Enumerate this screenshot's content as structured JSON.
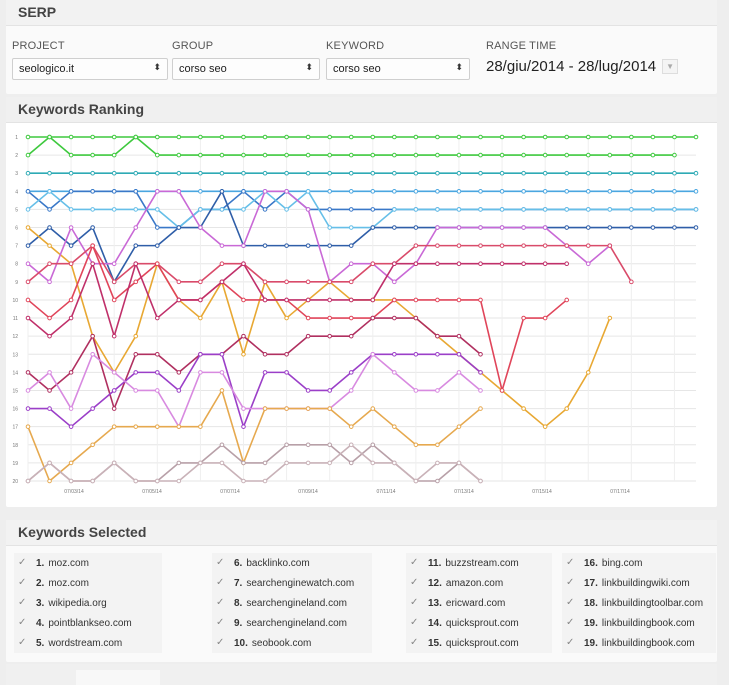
{
  "serp": {
    "title": "SERP",
    "project": {
      "label": "PROJECT",
      "value": "seologico.it"
    },
    "group": {
      "label": "GROUP",
      "value": "corso seo"
    },
    "keyword": {
      "label": "KEYWORD",
      "value": "corso seo"
    },
    "range": {
      "label": "RANGE TIME",
      "value": "28/giu/2014 - 28/lug/2014"
    }
  },
  "ranking": {
    "title": "Keywords Ranking"
  },
  "chart_data": {
    "type": "line",
    "y_ticks": [
      "1",
      "2",
      "3",
      "4",
      "5",
      "6",
      "7",
      "8",
      "9",
      "10",
      "11",
      "12",
      "13",
      "14",
      "15",
      "16",
      "17",
      "18",
      "19",
      "20"
    ],
    "x_ticks": [
      "07/03/14",
      "07/05/14",
      "07/07/14",
      "07/09/14",
      "07/11/14",
      "07/13/14",
      "07/15/14",
      "07/17/14"
    ],
    "ylim": [
      1,
      20
    ],
    "series": [
      {
        "color": "#3ec93e",
        "values": [
          1,
          1,
          1,
          1,
          1,
          1,
          1,
          1,
          1,
          1,
          1,
          1,
          1,
          1,
          1,
          1,
          1,
          1,
          1,
          1,
          1,
          1,
          1,
          1,
          1,
          1,
          1,
          1,
          1,
          1,
          1,
          1
        ]
      },
      {
        "color": "#3ec93e",
        "values": [
          2,
          1,
          2,
          2,
          2,
          1,
          2,
          2,
          2,
          2,
          2,
          2,
          2,
          2,
          2,
          2,
          2,
          2,
          2,
          2,
          2,
          2,
          2,
          2,
          2,
          2,
          2,
          2,
          2,
          2,
          2
        ]
      },
      {
        "color": "#2eaab5",
        "values": [
          3,
          3,
          3,
          3,
          3,
          3,
          3,
          3,
          3,
          3,
          3,
          3,
          3,
          3,
          3,
          3,
          3,
          3,
          3,
          3,
          3,
          3,
          3,
          3,
          3,
          3,
          3,
          3,
          3,
          3,
          3,
          3
        ]
      },
      {
        "color": "#4aa6e0",
        "values": [
          4,
          4,
          4,
          4,
          4,
          4,
          4,
          4,
          4,
          4,
          4,
          4,
          4,
          4,
          4,
          4,
          4,
          4,
          4,
          4,
          4,
          4,
          4,
          4,
          4,
          4,
          4,
          4,
          4,
          4,
          4,
          4
        ]
      },
      {
        "color": "#3a78c8",
        "values": [
          4,
          5,
          4,
          4,
          4,
          4,
          6,
          6,
          5,
          5,
          4,
          5,
          4,
          5,
          5,
          5,
          5,
          5,
          5,
          5,
          5,
          5,
          5,
          5,
          5,
          5,
          5,
          5,
          5,
          5,
          5,
          5
        ]
      },
      {
        "color": "#66bfe8",
        "values": [
          5,
          4,
          5,
          5,
          5,
          5,
          5,
          6,
          5,
          5,
          5,
          4,
          5,
          4,
          6,
          6,
          6,
          5,
          5,
          5,
          5,
          5,
          5,
          5,
          5,
          5,
          5,
          5,
          5,
          5,
          5,
          5
        ]
      },
      {
        "color": "#2f5ea8",
        "values": [
          7,
          6,
          7,
          6,
          9,
          7,
          7,
          6,
          6,
          4,
          7,
          7,
          7,
          7,
          7,
          7,
          6,
          6,
          6,
          6,
          6,
          6,
          6,
          6,
          6,
          6,
          6,
          6,
          6,
          6,
          6,
          6
        ]
      },
      {
        "color": "#e8a833",
        "values": [
          6,
          7,
          8,
          12,
          14,
          12,
          8,
          10,
          11,
          9,
          13,
          9,
          11,
          10,
          9,
          10,
          10,
          10,
          11,
          12,
          13,
          14,
          15,
          16,
          17,
          16,
          14,
          11
        ]
      },
      {
        "color": "#c969d6",
        "values": [
          8,
          9,
          6,
          8,
          8,
          6,
          4,
          4,
          6,
          7,
          7,
          4,
          4,
          5,
          9,
          8,
          8,
          9,
          8,
          6,
          6,
          6,
          6,
          6,
          6,
          7,
          8,
          7
        ]
      },
      {
        "color": "#d94b6a",
        "values": [
          9,
          8,
          8,
          7,
          9,
          8,
          8,
          9,
          9,
          8,
          8,
          9,
          9,
          9,
          9,
          9,
          8,
          8,
          7,
          7,
          7,
          7,
          7,
          7,
          7,
          7,
          7,
          7,
          9
        ]
      },
      {
        "color": "#e0455a",
        "values": [
          10,
          11,
          10,
          7,
          10,
          9,
          8,
          10,
          10,
          9,
          10,
          10,
          10,
          11,
          11,
          11,
          11,
          10,
          10,
          10,
          10,
          10,
          15,
          11,
          11,
          10
        ]
      },
      {
        "color": "#c0306a",
        "values": [
          11,
          12,
          11,
          8,
          12,
          8,
          11,
          10,
          10,
          9,
          8,
          10,
          10,
          10,
          10,
          10,
          10,
          8,
          8,
          8,
          8,
          8,
          8,
          8,
          8,
          8
        ]
      },
      {
        "color": "#b03060",
        "values": [
          14,
          15,
          14,
          12,
          16,
          13,
          13,
          14,
          13,
          13,
          12,
          13,
          13,
          12,
          12,
          12,
          11,
          11,
          11,
          12,
          12,
          13
        ]
      },
      {
        "color": "#9b3fc8",
        "values": [
          16,
          16,
          17,
          16,
          15,
          14,
          14,
          15,
          13,
          13,
          17,
          14,
          14,
          15,
          15,
          14,
          13,
          13,
          13,
          13,
          13,
          14
        ]
      },
      {
        "color": "#d88ae0",
        "values": [
          15,
          14,
          16,
          13,
          14,
          15,
          15,
          17,
          14,
          14,
          16,
          16,
          16,
          16,
          16,
          15,
          13,
          14,
          15,
          15,
          14,
          15
        ]
      },
      {
        "color": "#e6a94f",
        "values": [
          17,
          20,
          19,
          18,
          17,
          17,
          17,
          17,
          17,
          15,
          19,
          16,
          16,
          16,
          16,
          17,
          16,
          17,
          18,
          18,
          17,
          16
        ]
      },
      {
        "color": "#b8a0a8",
        "values": [
          20,
          19,
          20,
          20,
          19,
          20,
          20,
          19,
          19,
          18,
          19,
          19,
          18,
          18,
          18,
          19,
          18,
          19,
          20,
          20,
          19,
          20
        ]
      },
      {
        "color": "#c9b2b8",
        "values": [
          20,
          19,
          20,
          20,
          19,
          20,
          20,
          20,
          19,
          19,
          20,
          20,
          19,
          19,
          19,
          18,
          19,
          19,
          20,
          19,
          19,
          20
        ]
      }
    ]
  },
  "selected": {
    "title": "Keywords Selected",
    "items": [
      {
        "num": "1.",
        "name": "moz.com"
      },
      {
        "num": "2.",
        "name": "moz.com"
      },
      {
        "num": "3.",
        "name": "wikipedia.org"
      },
      {
        "num": "4.",
        "name": "pointblankseo.com"
      },
      {
        "num": "5.",
        "name": "wordstream.com"
      },
      {
        "num": "6.",
        "name": "backlinko.com"
      },
      {
        "num": "7.",
        "name": "searchenginewatch.com"
      },
      {
        "num": "8.",
        "name": "searchengineland.com"
      },
      {
        "num": "9.",
        "name": "searchengineland.com"
      },
      {
        "num": "10.",
        "name": "seobook.com"
      },
      {
        "num": "11.",
        "name": "buzzstream.com"
      },
      {
        "num": "12.",
        "name": "amazon.com"
      },
      {
        "num": "13.",
        "name": "ericward.com"
      },
      {
        "num": "14.",
        "name": "quicksprout.com"
      },
      {
        "num": "15.",
        "name": "quicksprout.com"
      },
      {
        "num": "16.",
        "name": "bing.com"
      },
      {
        "num": "17.",
        "name": "linkbuildingwiki.com"
      },
      {
        "num": "18.",
        "name": "linkbuildingtoolbar.com"
      },
      {
        "num": "19.",
        "name": "linkbuildingbook.com"
      },
      {
        "num": "19.",
        "name": "linkbuildingbook.com"
      }
    ]
  }
}
